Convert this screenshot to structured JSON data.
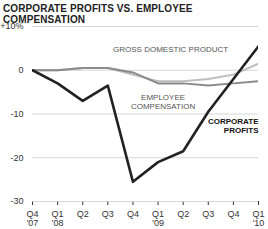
{
  "chart_data": {
    "type": "line",
    "title": "CORPORATE PROFITS VS. EMPLOYEE COMPENSATION",
    "categories": [
      "Q4 '07",
      "Q1 '08",
      "Q2",
      "Q3",
      "Q4",
      "Q1 '09",
      "Q2",
      "Q3",
      "Q4",
      "Q1 '10"
    ],
    "series": [
      {
        "name": "GROSS DOMESTIC PRODUCT",
        "color": "#bdbdbd",
        "values": [
          0,
          0,
          0.5,
          0.5,
          -1,
          -2.5,
          -2.5,
          -2,
          -1,
          1.5
        ]
      },
      {
        "name": "EMPLOYEE COMPENSATION",
        "color": "#8a8a8a",
        "values": [
          0,
          0,
          0.5,
          0.5,
          -0.5,
          -3,
          -3,
          -3.5,
          -3,
          -2.5
        ]
      },
      {
        "name": "CORPORATE PROFITS",
        "color": "#222222",
        "values": [
          0,
          -3,
          -7,
          -3.5,
          -25.5,
          -21,
          -18.5,
          -9.5,
          -2,
          5.5
        ]
      }
    ],
    "ylim": [
      -30,
      10
    ],
    "yticks": [
      {
        "value": 10,
        "label": "+10%"
      },
      0,
      -10,
      -20,
      -30
    ],
    "grid": true
  }
}
